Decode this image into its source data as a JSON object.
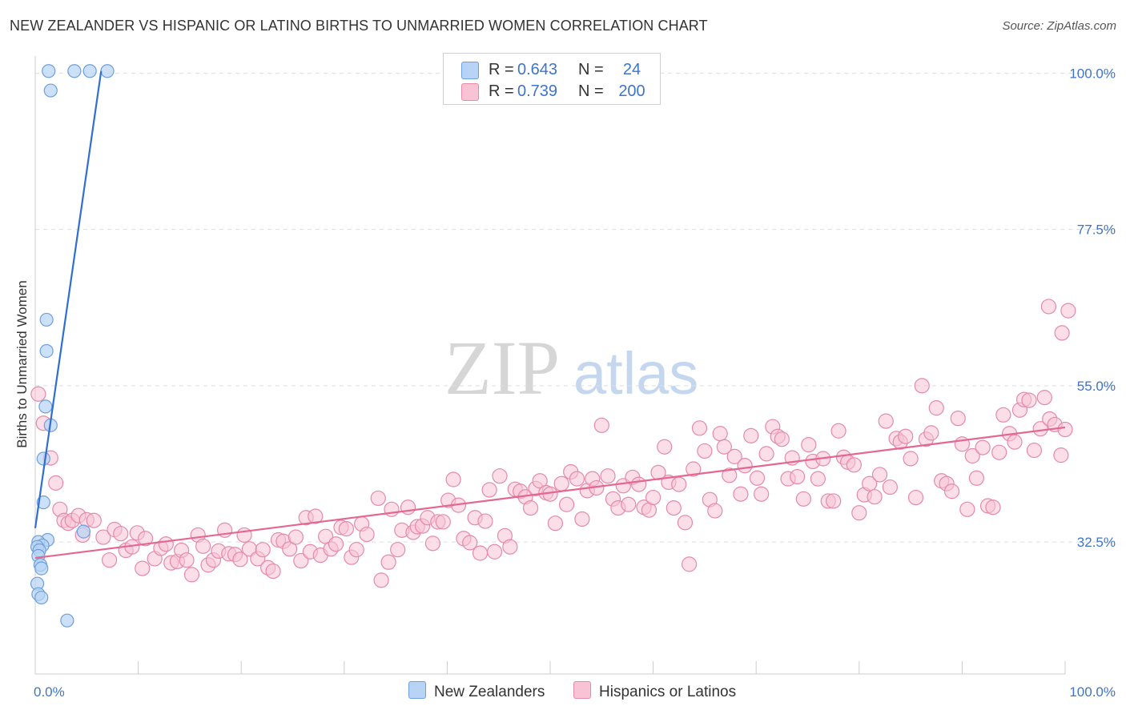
{
  "title": "NEW ZEALANDER VS HISPANIC OR LATINO BIRTHS TO UNMARRIED WOMEN CORRELATION CHART",
  "source": "Source: ZipAtlas.com",
  "watermark": {
    "zip": "ZIP",
    "atlas": "atlas"
  },
  "legend": {
    "r_label": "R =",
    "n_label": "N =",
    "entries": [
      {
        "name": "New Zealanders",
        "r": "0.643",
        "n": "24",
        "fill": "#b7d3f5",
        "stroke": "#6f9fdc"
      },
      {
        "name": "Hispanics or Latinos",
        "r": "0.739",
        "n": "200",
        "fill": "#f7c3d5",
        "stroke": "#e58aa9"
      }
    ]
  },
  "colors": {
    "blue_fill": "#b7d3f5",
    "blue_stroke": "#6f9fdc",
    "blue_line": "#2f6fd1",
    "pink_fill": "#f7c3d5",
    "pink_stroke": "#e58aa9",
    "pink_line": "#e3678f",
    "tick_label": "#3f74c6",
    "grid": "#dedede",
    "axis": "#cccccc"
  },
  "chart_data": {
    "type": "scatter",
    "title": "NEW ZEALANDER VS HISPANIC OR LATINO BIRTHS TO UNMARRIED WOMEN CORRELATION CHART",
    "xlabel": "",
    "ylabel": "Births to Unmarried Women",
    "xlim": [
      0,
      100
    ],
    "ylim": [
      13.5,
      102
    ],
    "x_tick_labels": [
      "0.0%",
      "100.0%"
    ],
    "y_ticks": [
      {
        "value": 100,
        "label": "100.0%"
      },
      {
        "value": 77.5,
        "label": "77.5%"
      },
      {
        "value": 55,
        "label": "55.0%"
      },
      {
        "value": 32.5,
        "label": "32.5%"
      }
    ],
    "grid": true,
    "series": [
      {
        "name": "New Zealanders",
        "r": 0.643,
        "n": 24,
        "points": [
          [
            1.3,
            100.3
          ],
          [
            3.8,
            100.3
          ],
          [
            5.3,
            100.3
          ],
          [
            7.0,
            100.3
          ],
          [
            1.5,
            97.5
          ],
          [
            1.1,
            64.5
          ],
          [
            1.1,
            60.0
          ],
          [
            1.0,
            52.0
          ],
          [
            1.5,
            49.3
          ],
          [
            0.8,
            44.5
          ],
          [
            0.8,
            38.2
          ],
          [
            4.7,
            34.0
          ],
          [
            1.2,
            32.8
          ],
          [
            0.3,
            32.5
          ],
          [
            0.7,
            32.0
          ],
          [
            0.2,
            31.8
          ],
          [
            0.4,
            31.3
          ],
          [
            0.3,
            30.5
          ],
          [
            0.5,
            29.2
          ],
          [
            0.6,
            28.7
          ],
          [
            0.2,
            26.5
          ],
          [
            0.3,
            25.0
          ],
          [
            0.6,
            24.5
          ],
          [
            3.1,
            21.2
          ]
        ],
        "trendline": {
          "x": [
            0.0,
            6.4
          ],
          "y": [
            34.5,
            100.3
          ]
        }
      },
      {
        "name": "Hispanics or Latinos",
        "r": 0.739,
        "n": 200,
        "points": [
          [
            0.3,
            53.8
          ],
          [
            0.8,
            49.6
          ],
          [
            1.5,
            44.6
          ],
          [
            2.0,
            41.0
          ],
          [
            2.4,
            37.2
          ],
          [
            2.8,
            35.6
          ],
          [
            3.2,
            35.2
          ],
          [
            3.6,
            35.6
          ],
          [
            4.2,
            36.3
          ],
          [
            4.6,
            33.5
          ],
          [
            5.0,
            35.7
          ],
          [
            5.7,
            35.6
          ],
          [
            6.6,
            33.2
          ],
          [
            7.2,
            29.9
          ],
          [
            7.7,
            34.3
          ],
          [
            8.3,
            33.7
          ],
          [
            8.8,
            31.3
          ],
          [
            9.4,
            31.8
          ],
          [
            9.9,
            33.8
          ],
          [
            10.4,
            28.7
          ],
          [
            10.7,
            33.0
          ],
          [
            11.6,
            30.1
          ],
          [
            12.2,
            31.6
          ],
          [
            12.7,
            32.2
          ],
          [
            13.2,
            29.5
          ],
          [
            13.8,
            29.7
          ],
          [
            14.2,
            31.3
          ],
          [
            14.7,
            29.9
          ],
          [
            15.2,
            27.8
          ],
          [
            15.8,
            33.5
          ],
          [
            16.3,
            31.9
          ],
          [
            16.8,
            29.2
          ],
          [
            17.3,
            29.9
          ],
          [
            17.8,
            31.2
          ],
          [
            18.4,
            34.2
          ],
          [
            18.8,
            30.8
          ],
          [
            19.4,
            30.7
          ],
          [
            19.9,
            30.0
          ],
          [
            20.3,
            33.5
          ],
          [
            20.8,
            31.5
          ],
          [
            21.6,
            30.1
          ],
          [
            22.1,
            31.4
          ],
          [
            22.6,
            28.8
          ],
          [
            23.1,
            28.3
          ],
          [
            23.6,
            32.8
          ],
          [
            24.1,
            32.6
          ],
          [
            24.7,
            31.5
          ],
          [
            25.3,
            33.2
          ],
          [
            25.8,
            29.8
          ],
          [
            26.3,
            36.0
          ],
          [
            26.7,
            31.1
          ],
          [
            27.2,
            36.2
          ],
          [
            27.7,
            30.6
          ],
          [
            28.2,
            33.3
          ],
          [
            28.7,
            31.5
          ],
          [
            29.2,
            32.2
          ],
          [
            29.7,
            34.6
          ],
          [
            30.2,
            34.4
          ],
          [
            30.7,
            30.3
          ],
          [
            31.2,
            31.4
          ],
          [
            31.7,
            35.1
          ],
          [
            32.2,
            33.6
          ],
          [
            33.3,
            38.8
          ],
          [
            33.6,
            27.0
          ],
          [
            34.3,
            29.6
          ],
          [
            34.6,
            37.2
          ],
          [
            35.2,
            31.4
          ],
          [
            35.6,
            34.2
          ],
          [
            36.2,
            37.5
          ],
          [
            36.7,
            33.9
          ],
          [
            37.1,
            34.7
          ],
          [
            37.6,
            34.8
          ],
          [
            38.1,
            36.0
          ],
          [
            38.6,
            32.3
          ],
          [
            39.1,
            35.4
          ],
          [
            39.6,
            35.4
          ],
          [
            40.1,
            38.5
          ],
          [
            40.6,
            41.5
          ],
          [
            41.1,
            37.8
          ],
          [
            41.6,
            33.0
          ],
          [
            42.2,
            32.4
          ],
          [
            42.7,
            36.0
          ],
          [
            43.2,
            30.9
          ],
          [
            43.7,
            35.5
          ],
          [
            44.1,
            40.0
          ],
          [
            44.6,
            31.1
          ],
          [
            45.1,
            42.0
          ],
          [
            45.6,
            33.4
          ],
          [
            46.1,
            31.8
          ],
          [
            46.6,
            40.1
          ],
          [
            47.1,
            39.8
          ],
          [
            47.6,
            39.0
          ],
          [
            48.1,
            37.4
          ],
          [
            48.6,
            40.2
          ],
          [
            49.0,
            41.3
          ],
          [
            49.6,
            39.6
          ],
          [
            50.0,
            39.4
          ],
          [
            50.5,
            35.2
          ],
          [
            51.1,
            40.9
          ],
          [
            51.6,
            37.9
          ],
          [
            52.0,
            42.6
          ],
          [
            52.6,
            41.6
          ],
          [
            53.1,
            35.8
          ],
          [
            53.6,
            39.9
          ],
          [
            54.1,
            41.6
          ],
          [
            54.5,
            40.3
          ],
          [
            55.0,
            49.3
          ],
          [
            55.6,
            42.0
          ],
          [
            56.1,
            38.7
          ],
          [
            56.6,
            37.4
          ],
          [
            57.1,
            40.6
          ],
          [
            57.6,
            37.9
          ],
          [
            58.0,
            41.8
          ],
          [
            58.6,
            40.8
          ],
          [
            59.1,
            37.5
          ],
          [
            59.6,
            37.1
          ],
          [
            60.0,
            38.9
          ],
          [
            60.5,
            42.5
          ],
          [
            61.1,
            46.2
          ],
          [
            61.5,
            41.1
          ],
          [
            62.0,
            37.4
          ],
          [
            62.5,
            40.8
          ],
          [
            63.1,
            35.3
          ],
          [
            63.5,
            29.3
          ],
          [
            63.9,
            43.0
          ],
          [
            64.5,
            48.9
          ],
          [
            65.0,
            45.6
          ],
          [
            65.5,
            38.6
          ],
          [
            66.0,
            37.0
          ],
          [
            66.5,
            48.1
          ],
          [
            66.9,
            46.2
          ],
          [
            67.4,
            42.1
          ],
          [
            67.9,
            44.8
          ],
          [
            68.5,
            39.4
          ],
          [
            68.9,
            43.5
          ],
          [
            69.5,
            47.8
          ],
          [
            70.1,
            41.7
          ],
          [
            70.5,
            39.4
          ],
          [
            71.0,
            45.2
          ],
          [
            71.6,
            49.1
          ],
          [
            72.1,
            47.7
          ],
          [
            72.5,
            47.3
          ],
          [
            73.1,
            41.6
          ],
          [
            73.5,
            44.6
          ],
          [
            74.0,
            41.9
          ],
          [
            74.6,
            38.7
          ],
          [
            75.1,
            46.5
          ],
          [
            75.5,
            44.1
          ],
          [
            76.0,
            41.6
          ],
          [
            76.5,
            44.5
          ],
          [
            77.0,
            38.4
          ],
          [
            77.5,
            38.4
          ],
          [
            78.0,
            48.5
          ],
          [
            78.5,
            44.7
          ],
          [
            78.9,
            44.0
          ],
          [
            79.5,
            43.6
          ],
          [
            80.0,
            36.7
          ],
          [
            80.5,
            39.3
          ],
          [
            81.0,
            40.9
          ],
          [
            81.5,
            39.0
          ],
          [
            82.0,
            42.2
          ],
          [
            82.6,
            49.9
          ],
          [
            83.0,
            40.4
          ],
          [
            83.6,
            47.4
          ],
          [
            84.0,
            46.9
          ],
          [
            84.5,
            47.7
          ],
          [
            85.0,
            44.5
          ],
          [
            85.5,
            38.9
          ],
          [
            86.1,
            55.0
          ],
          [
            86.5,
            47.3
          ],
          [
            87.0,
            48.2
          ],
          [
            87.5,
            51.8
          ],
          [
            88.0,
            41.3
          ],
          [
            88.5,
            40.9
          ],
          [
            89.0,
            39.8
          ],
          [
            89.6,
            50.3
          ],
          [
            90.0,
            46.6
          ],
          [
            90.5,
            37.2
          ],
          [
            91.0,
            44.9
          ],
          [
            91.4,
            41.7
          ],
          [
            92.0,
            46.1
          ],
          [
            92.5,
            37.7
          ],
          [
            93.0,
            37.5
          ],
          [
            93.6,
            45.4
          ],
          [
            94.0,
            50.8
          ],
          [
            94.6,
            48.1
          ],
          [
            95.1,
            46.9
          ],
          [
            95.6,
            51.5
          ],
          [
            96.0,
            53.0
          ],
          [
            96.5,
            52.9
          ],
          [
            97.0,
            45.7
          ],
          [
            97.6,
            48.8
          ],
          [
            98.0,
            53.3
          ],
          [
            98.5,
            50.2
          ],
          [
            99.0,
            49.4
          ],
          [
            99.6,
            45.0
          ],
          [
            100.0,
            48.7
          ],
          [
            98.4,
            66.4
          ],
          [
            99.7,
            62.6
          ],
          [
            100.3,
            65.8
          ]
        ],
        "trendline": {
          "x": [
            0,
            100
          ],
          "y": [
            30.2,
            49.0
          ]
        }
      }
    ]
  }
}
